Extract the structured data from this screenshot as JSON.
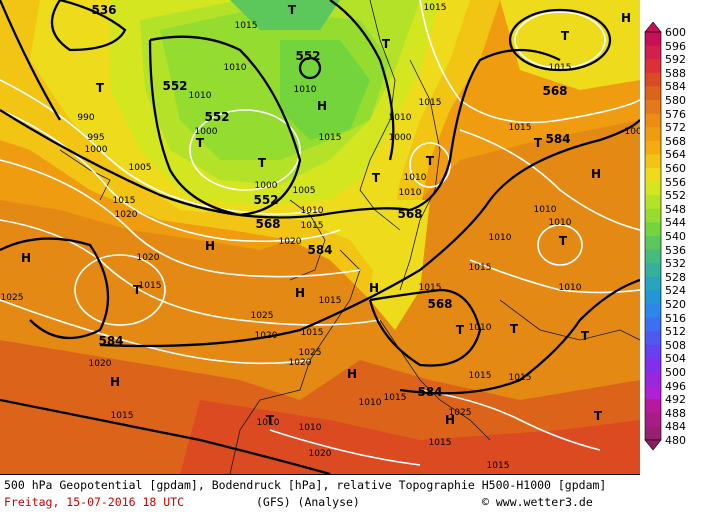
{
  "caption": {
    "line1": "500 hPa Geopotential [gpdam], Bodendruck [hPa], relative Topographie H500-H1000 [gpdam]",
    "date": "Freitag, 15-07-2016  18 UTC",
    "model": "(GFS)  (Analyse)",
    "credit": "© www.wetter3.de"
  },
  "legend": {
    "values": [
      "600",
      "596",
      "592",
      "588",
      "584",
      "580",
      "576",
      "572",
      "568",
      "564",
      "560",
      "556",
      "552",
      "548",
      "544",
      "540",
      "536",
      "532",
      "528",
      "524",
      "520",
      "516",
      "512",
      "508",
      "504",
      "500",
      "496",
      "492",
      "488",
      "484",
      "480"
    ],
    "colors": [
      "#c8105a",
      "#d2204a",
      "#dc3038",
      "#dc4a22",
      "#dc641a",
      "#e4781a",
      "#ec8c14",
      "#f09c10",
      "#f4ac10",
      "#f2c414",
      "#eedc1c",
      "#d4e620",
      "#b4e228",
      "#94dc30",
      "#74d43c",
      "#5cc85c",
      "#44bc7c",
      "#34b09c",
      "#28a4bc",
      "#2098d8",
      "#2c88e8",
      "#3c70f0",
      "#5058f0",
      "#6840f0",
      "#8030e8",
      "#9828e0",
      "#b020d4",
      "#b8189c",
      "#a81c88",
      "#982070",
      "#882060"
    ]
  },
  "map": {
    "geopotential_labels": [
      "536",
      "552",
      "552",
      "552",
      "552",
      "568",
      "584",
      "568",
      "584",
      "568",
      "584",
      "568",
      "584"
    ],
    "pressure_labels": [
      "1015",
      "1010",
      "1015",
      "1010",
      "1015",
      "990",
      "995",
      "1000",
      "1005",
      "1015",
      "1020",
      "1000",
      "1010",
      "1000",
      "1005",
      "1010",
      "1015",
      "1020",
      "1015",
      "1025",
      "1020",
      "1015",
      "1025",
      "1020",
      "1015",
      "1020",
      "1025",
      "1010",
      "1015",
      "1015",
      "1010",
      "1010",
      "1010",
      "1015",
      "1010",
      "1015",
      "1015",
      "1010",
      "1015",
      "1000",
      "1010",
      "1015",
      "1025",
      "1010",
      "1020",
      "1015",
      "1010",
      "1010",
      "1015",
      "1020",
      "1015",
      "1010",
      "1005",
      "1015"
    ],
    "high_symbol": "H",
    "low_symbol": "T"
  }
}
